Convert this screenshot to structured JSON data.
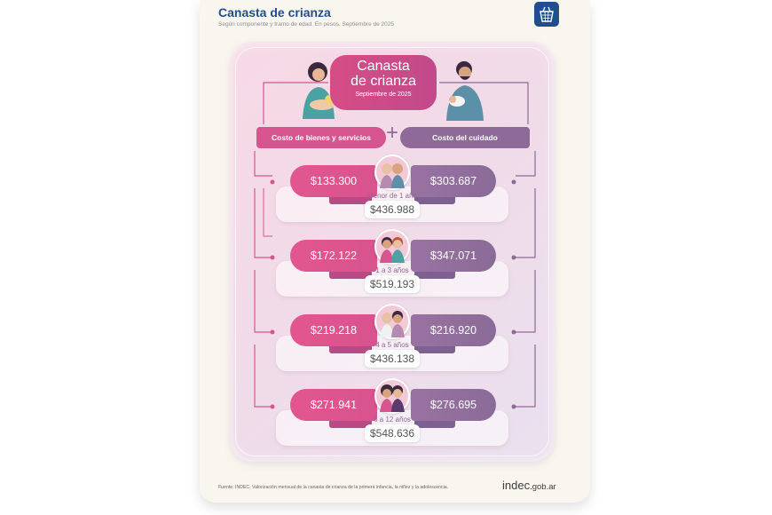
{
  "header": {
    "title": "Canasta de crianza",
    "subtitle": "Según componente y tramo de edad. En pesos. Septiembre de 2025"
  },
  "central": {
    "title_line1": "Canasta",
    "title_line2": "de crianza",
    "date": "Septiembre de 2025"
  },
  "components": {
    "left_label": "Costo de bienes y servicios",
    "plus": "+",
    "right_label": "Costo del cuidado"
  },
  "rows": [
    {
      "age": "Menor de 1 año",
      "goods": "$133.300",
      "care": "$303.687",
      "total": "$436.988"
    },
    {
      "age": "1 a 3 años",
      "goods": "$172.122",
      "care": "$347.071",
      "total": "$519.193"
    },
    {
      "age": "4 a 5 años",
      "goods": "$219.218",
      "care": "$216.920",
      "total": "$436.138"
    },
    {
      "age": "6 a 12 años",
      "goods": "$271.941",
      "care": "$276.695",
      "total": "$548.636"
    }
  ],
  "footer": {
    "source": "Fuente: INDEC. Valorización mensual de la canasta de crianza de la primera infancia, la niñez y la adolescencia.",
    "brand_main": "indec",
    "brand_domain": ".gob.ar"
  },
  "colors": {
    "goods": "#d6558f",
    "care": "#8e6a98",
    "title": "#1f4f8f"
  },
  "icons": [
    "basket-icon",
    "mother-illustration",
    "father-illustration",
    "baby-avatar",
    "toddler-avatar",
    "preschooler-avatar",
    "child-avatar"
  ]
}
